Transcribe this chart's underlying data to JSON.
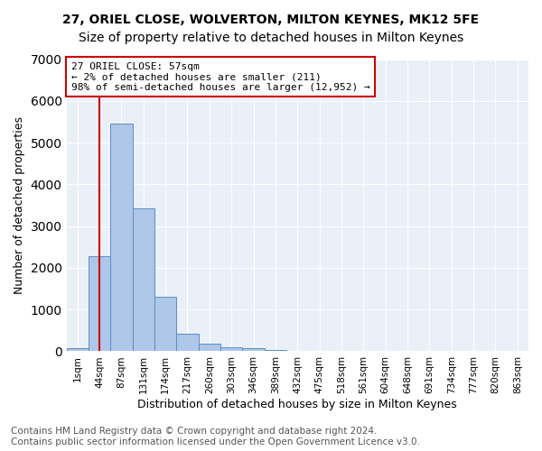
{
  "title1": "27, ORIEL CLOSE, WOLVERTON, MILTON KEYNES, MK12 5FE",
  "title2": "Size of property relative to detached houses in Milton Keynes",
  "xlabel": "Distribution of detached houses by size in Milton Keynes",
  "ylabel": "Number of detached properties",
  "footer": "Contains HM Land Registry data © Crown copyright and database right 2024.\nContains public sector information licensed under the Open Government Licence v3.0.",
  "bin_labels": [
    "1sqm",
    "44sqm",
    "87sqm",
    "131sqm",
    "174sqm",
    "217sqm",
    "260sqm",
    "303sqm",
    "346sqm",
    "389sqm",
    "432sqm",
    "475sqm",
    "518sqm",
    "561sqm",
    "604sqm",
    "648sqm",
    "691sqm",
    "734sqm",
    "777sqm",
    "820sqm",
    "863sqm"
  ],
  "bar_values": [
    75,
    2280,
    5450,
    3420,
    1300,
    420,
    175,
    105,
    65,
    35,
    10,
    4,
    2,
    1,
    0,
    0,
    0,
    0,
    0,
    0,
    0
  ],
  "bar_color": "#aec6e8",
  "bar_edge_color": "#5a8fc2",
  "vline_x": 1,
  "vline_color": "#cc0000",
  "annotation_text": "27 ORIEL CLOSE: 57sqm\n← 2% of detached houses are smaller (211)\n98% of semi-detached houses are larger (12,952) →",
  "annotation_box_color": "#ffffff",
  "annotation_box_edge": "#cc0000",
  "ylim": [
    0,
    7000
  ],
  "yticks": [
    0,
    1000,
    2000,
    3000,
    4000,
    5000,
    6000,
    7000
  ],
  "bg_color": "#eaf0f8",
  "title1_fontsize": 10,
  "title2_fontsize": 10,
  "xlabel_fontsize": 9,
  "ylabel_fontsize": 9,
  "footer_fontsize": 7.5
}
